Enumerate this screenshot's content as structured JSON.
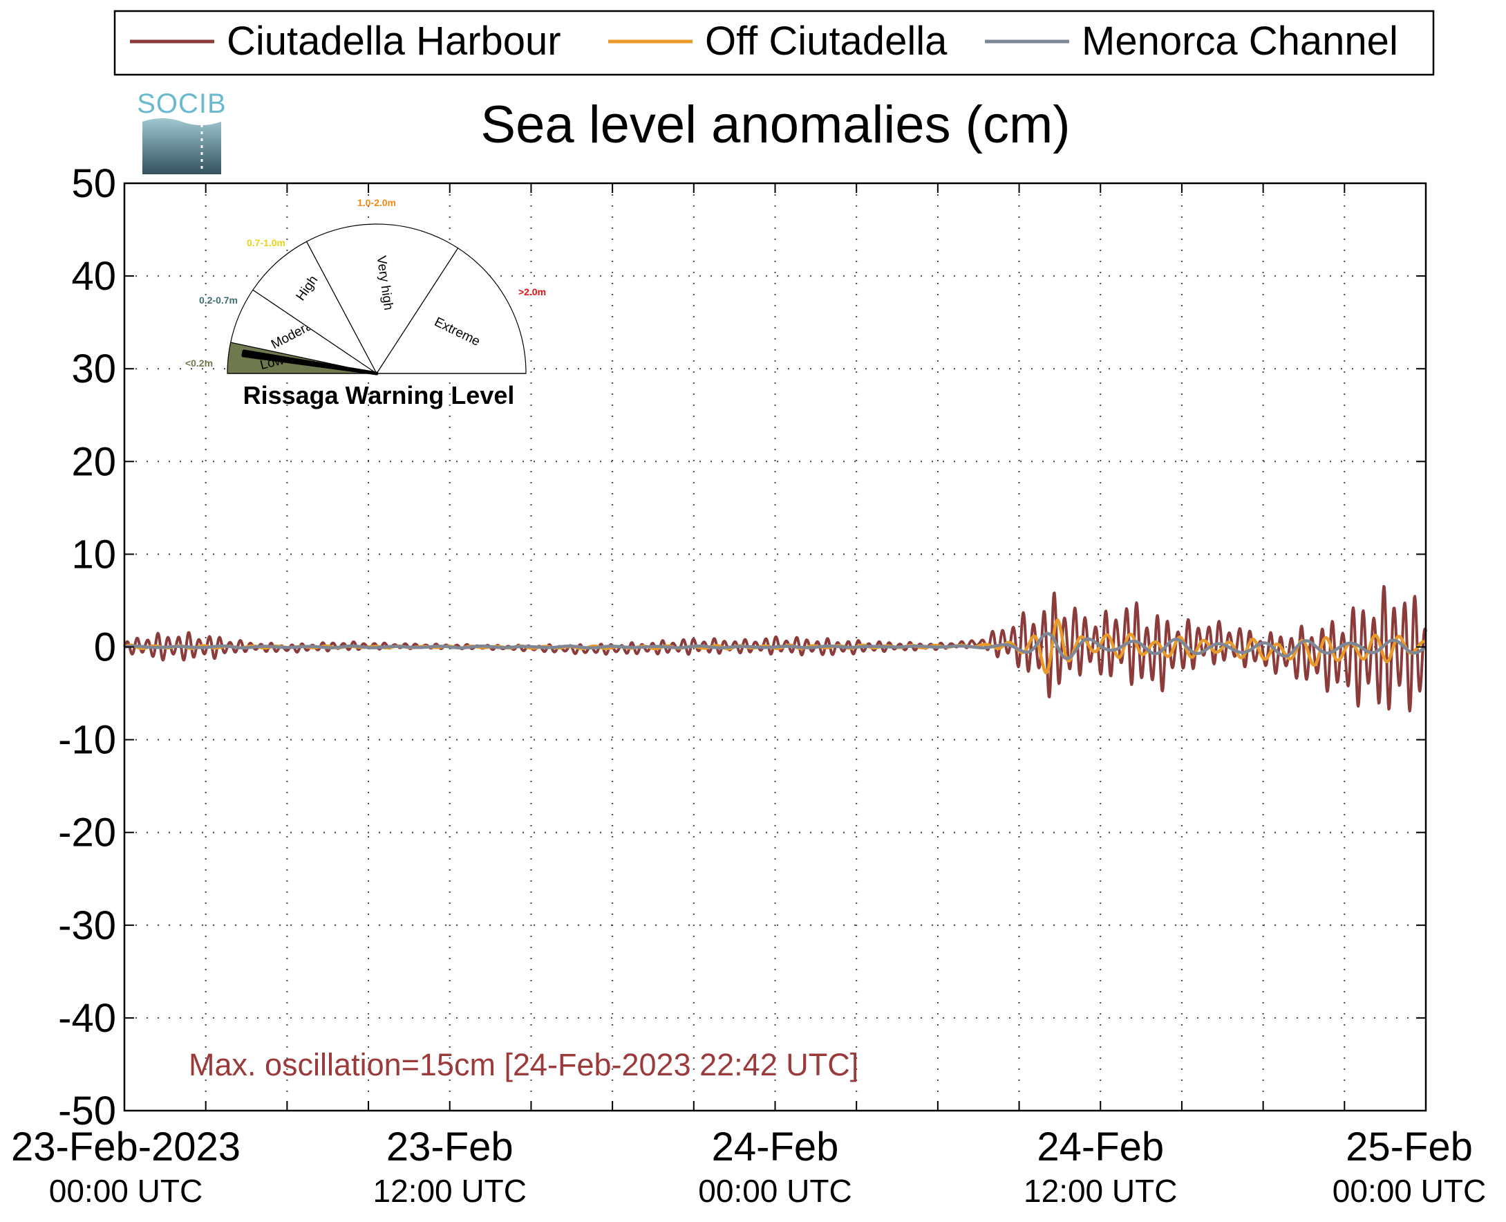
{
  "logo": {
    "text": "SOCIB"
  },
  "gauge": {
    "title": "Rissaga Warning Level",
    "current_level": "Low",
    "sectors": [
      {
        "label": "Low",
        "range": "<0.2m",
        "color": "#6e7a4e",
        "range_color": "#6e7a4e"
      },
      {
        "label": "Moderate",
        "range": "0.2-0.7m",
        "color": "#ffffff",
        "range_color": "#3e6f72"
      },
      {
        "label": "High",
        "range": "0.7-1.0m",
        "color": "#ffffff",
        "range_color": "#e8d21a"
      },
      {
        "label": "Very high",
        "range": "1.0-2.0m",
        "color": "#ffffff",
        "range_color": "#f08a12"
      },
      {
        "label": "Extreme",
        "range": ">2.0m",
        "color": "#ffffff",
        "range_color": "#e81010"
      }
    ]
  },
  "annotation": {
    "text": "Max. oscillation=15cm [24-Feb-2023 22:42 UTC]",
    "color": "#9b3a3a"
  },
  "chart_data": {
    "type": "line",
    "title": "Sea level anomalies (cm)",
    "xlabel": "",
    "ylabel": "",
    "ylim": [
      -50,
      50
    ],
    "yticks": [
      50,
      40,
      30,
      20,
      10,
      0,
      -10,
      -20,
      -30,
      -40,
      -50
    ],
    "xlim_hours": [
      0,
      48
    ],
    "x_tick_labels": [
      {
        "hour": 0,
        "line1": "23-Feb-2023",
        "line2": "00:00 UTC"
      },
      {
        "hour": 12,
        "line1": "23-Feb",
        "line2": "12:00 UTC"
      },
      {
        "hour": 24,
        "line1": "24-Feb",
        "line2": "00:00 UTC"
      },
      {
        "hour": 36,
        "line1": "24-Feb",
        "line2": "12:00 UTC"
      },
      {
        "hour": 48,
        "line1": "25-Feb",
        "line2": "00:00 UTC"
      }
    ],
    "x_gridlines_hours": [
      3,
      6,
      9,
      12,
      15,
      18,
      21,
      24,
      27,
      30,
      33,
      36,
      39,
      42,
      45
    ],
    "grid": true,
    "legend_position": "top",
    "series": [
      {
        "name": "Ciutadella Harbour",
        "color": "#8c3b3b",
        "envelope": [
          [
            0,
            0.5,
            -0.5
          ],
          [
            0.5,
            1.2,
            -1.0
          ],
          [
            1.5,
            1.6,
            -1.6
          ],
          [
            2.5,
            1.6,
            -1.5
          ],
          [
            3.5,
            1.2,
            -1.2
          ],
          [
            4.5,
            0.6,
            -0.5
          ],
          [
            6,
            0.3,
            -0.6
          ],
          [
            8,
            0.6,
            -0.4
          ],
          [
            10,
            0.4,
            -0.2
          ],
          [
            12,
            0.3,
            -0.2
          ],
          [
            14,
            0.2,
            -0.3
          ],
          [
            17,
            0.3,
            -0.8
          ],
          [
            19,
            0.5,
            -0.8
          ],
          [
            21,
            1.0,
            -0.8
          ],
          [
            23,
            0.8,
            -0.7
          ],
          [
            24,
            1.2,
            -0.8
          ],
          [
            26,
            0.9,
            -1.0
          ],
          [
            28,
            0.6,
            -0.5
          ],
          [
            30,
            0.4,
            -0.3
          ],
          [
            31.5,
            0.8,
            0.0
          ],
          [
            33,
            3.5,
            -2.5
          ],
          [
            34,
            5.0,
            -5.0
          ],
          [
            34.4,
            7.0,
            -6.8
          ],
          [
            35,
            4.5,
            -3.0
          ],
          [
            36,
            3.5,
            -3.5
          ],
          [
            37,
            5.5,
            -4.0
          ],
          [
            38,
            4.0,
            -5.5
          ],
          [
            39,
            3.0,
            -3.0
          ],
          [
            40,
            3.0,
            -2.0
          ],
          [
            41,
            2.5,
            -2.0
          ],
          [
            42,
            1.5,
            -2.5
          ],
          [
            43,
            2.0,
            -3.5
          ],
          [
            44.5,
            3.0,
            -5.0
          ],
          [
            45.5,
            5.0,
            -6.5
          ],
          [
            47,
            7.5,
            -8.0
          ],
          [
            48,
            4.5,
            -6.0
          ]
        ]
      },
      {
        "name": "Off Ciutadella",
        "color": "#e89a2a",
        "envelope": [
          [
            0,
            0.2,
            -0.2
          ],
          [
            6,
            0.1,
            -0.1
          ],
          [
            12,
            0.1,
            -0.1
          ],
          [
            18,
            0.1,
            -0.2
          ],
          [
            24,
            0.2,
            -0.2
          ],
          [
            30,
            0.2,
            -0.1
          ],
          [
            32,
            0.3,
            0.0
          ],
          [
            33,
            1.0,
            -1.0
          ],
          [
            34,
            2.5,
            -3.0
          ],
          [
            34.4,
            3.0,
            -3.5
          ],
          [
            35,
            2.0,
            -1.5
          ],
          [
            36,
            1.5,
            -1.0
          ],
          [
            37,
            1.6,
            -1.2
          ],
          [
            38,
            1.2,
            -1.5
          ],
          [
            40,
            1.0,
            -1.0
          ],
          [
            42,
            0.8,
            -1.5
          ],
          [
            43,
            1.0,
            -2.0
          ],
          [
            45,
            1.2,
            -2.0
          ],
          [
            47,
            1.5,
            -1.5
          ],
          [
            48,
            1.0,
            -1.0
          ]
        ]
      },
      {
        "name": "Menorca Channel",
        "color": "#7d8796",
        "envelope": [
          [
            0,
            0.1,
            -0.1
          ],
          [
            12,
            0.1,
            -0.1
          ],
          [
            24,
            0.1,
            -0.1
          ],
          [
            31,
            0.1,
            0.0
          ],
          [
            33,
            0.6,
            -0.6
          ],
          [
            34.4,
            1.8,
            -1.5
          ],
          [
            36,
            1.0,
            -0.8
          ],
          [
            38,
            0.9,
            -0.8
          ],
          [
            42,
            0.6,
            -1.0
          ],
          [
            44,
            0.8,
            -1.0
          ],
          [
            46,
            0.9,
            -0.9
          ],
          [
            48,
            0.6,
            -0.6
          ]
        ]
      }
    ]
  }
}
